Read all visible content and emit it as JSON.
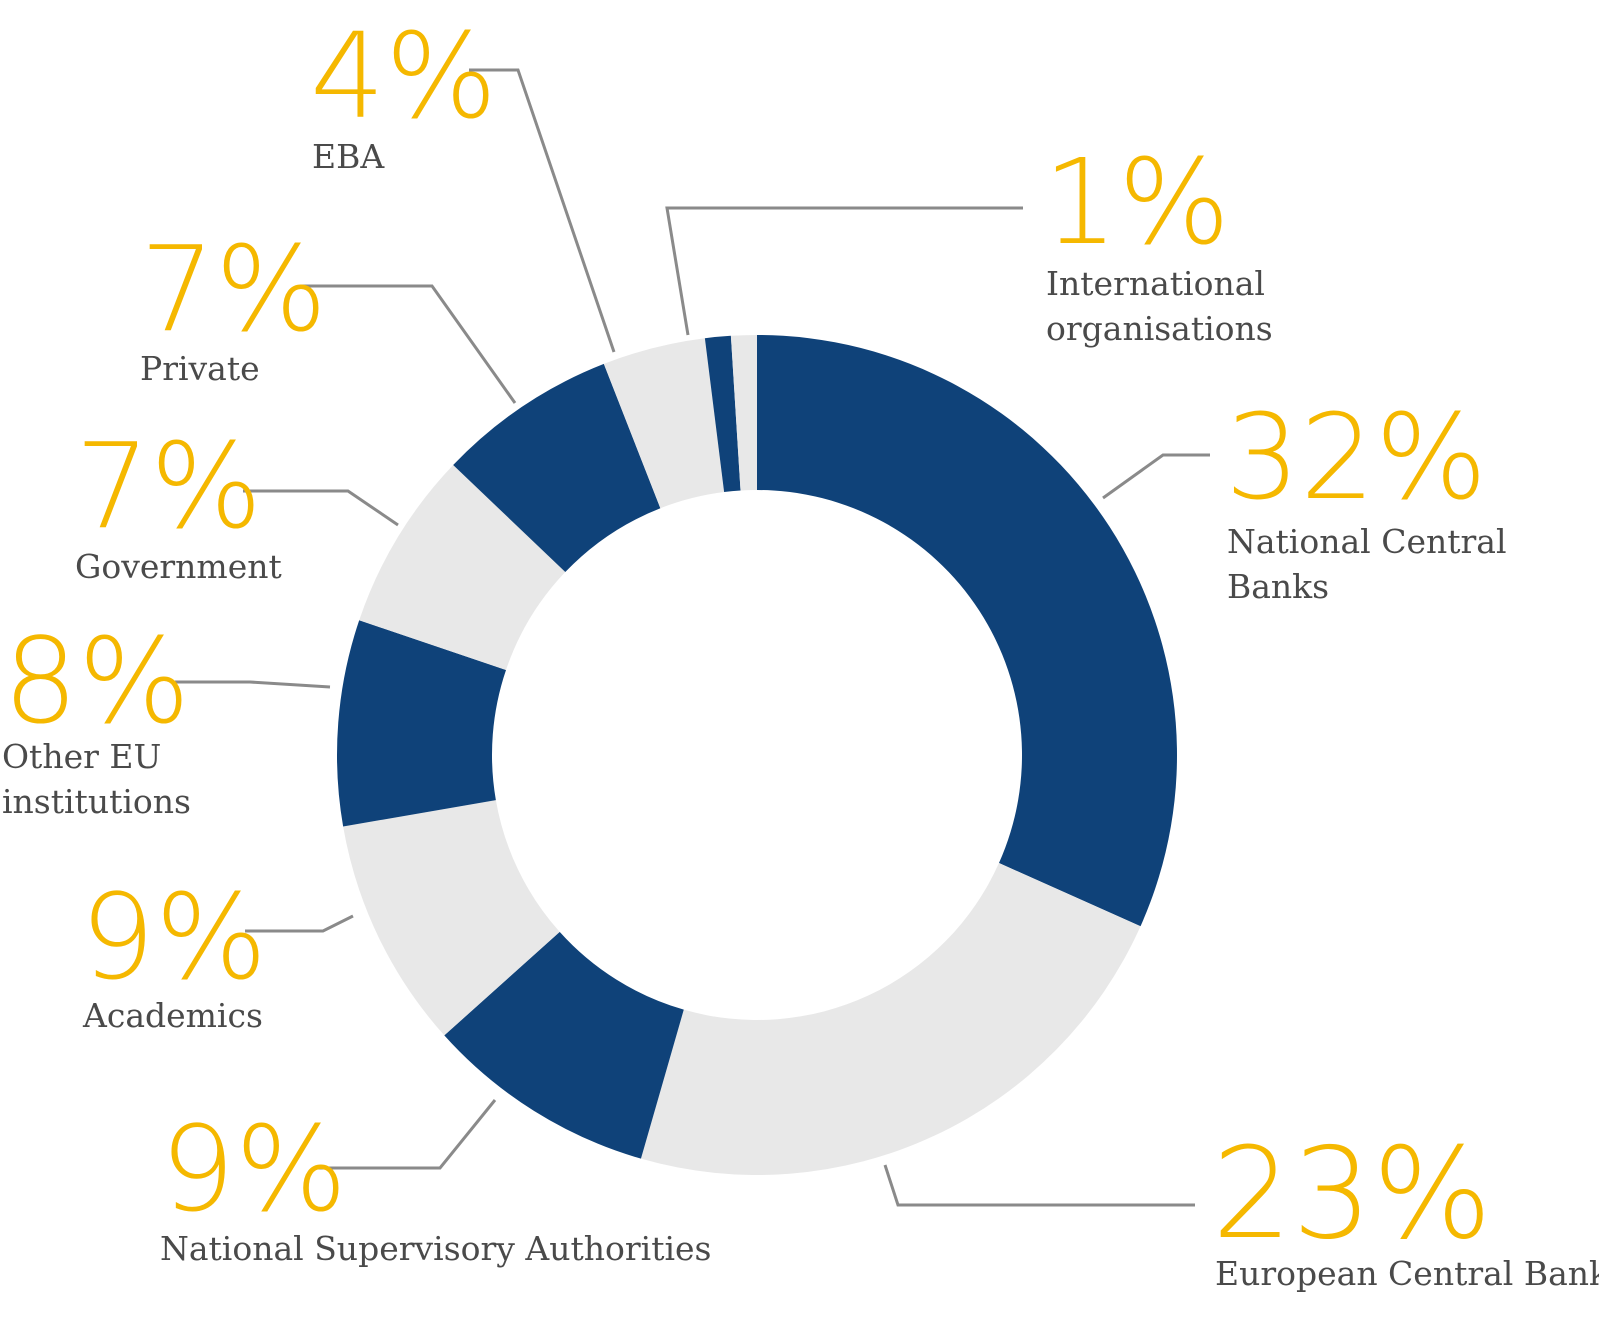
{
  "chart_data": {
    "type": "donut",
    "title": "",
    "unit": "%",
    "colors": {
      "dark": "#0f4279",
      "light": "#e8e8e8",
      "percent_text": "#f5b800",
      "label_text": "#4a4a4a",
      "leader": "#8a8a8a"
    },
    "slices": [
      {
        "name": "National Central Banks",
        "value": 32,
        "pct_label": "32%",
        "label_lines": [
          "National Central",
          "Banks"
        ],
        "color": "dark"
      },
      {
        "name": "European Central Bank",
        "value": 23,
        "pct_label": "23%",
        "label_lines": [
          "European Central Bank"
        ],
        "color": "light"
      },
      {
        "name": "National Supervisory Authorities",
        "value": 9,
        "pct_label": "9%",
        "label_lines": [
          "National Supervisory Authorities"
        ],
        "color": "dark"
      },
      {
        "name": "Academics",
        "value": 9,
        "pct_label": "9%",
        "label_lines": [
          "Academics"
        ],
        "color": "light"
      },
      {
        "name": "Other EU institutions",
        "value": 8,
        "pct_label": "8%",
        "label_lines": [
          "Other EU",
          "institutions"
        ],
        "color": "dark"
      },
      {
        "name": "Government",
        "value": 7,
        "pct_label": "7%",
        "label_lines": [
          "Government"
        ],
        "color": "light"
      },
      {
        "name": "Private",
        "value": 7,
        "pct_label": "7%",
        "label_lines": [
          "Private"
        ],
        "color": "dark"
      },
      {
        "name": "EBA",
        "value": 4,
        "pct_label": "4%",
        "label_lines": [
          "EBA"
        ],
        "color": "light"
      },
      {
        "name": "International organisations",
        "value": 1,
        "pct_label": "1%",
        "label_lines": [
          "International",
          "organisations"
        ],
        "color": "dark"
      },
      {
        "name": "",
        "value": 1,
        "pct_label": "",
        "label_lines": [],
        "color": "light"
      }
    ]
  }
}
